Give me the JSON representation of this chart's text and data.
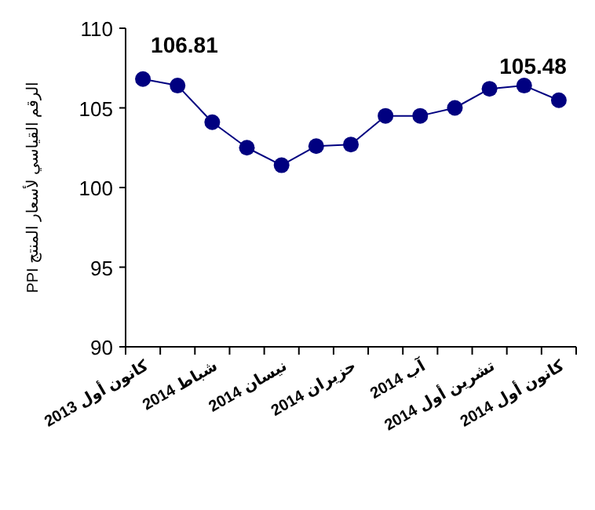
{
  "chart_data": {
    "type": "line",
    "ylabel": "الرقم القياسي لأسعار المنتج PPI",
    "categories": [
      "كانون أول 2013",
      null,
      "شباط 2014",
      null,
      "نيسان 2014",
      null,
      "حزيران 2014",
      null,
      "آب 2014",
      null,
      "تشرين أول 2014",
      null,
      "كانون أول 2014"
    ],
    "series": [
      {
        "color": "#000080",
        "values": [
          106.81,
          106.4,
          104.1,
          102.5,
          101.4,
          102.6,
          102.7,
          104.5,
          104.5,
          105.0,
          106.2,
          106.4,
          105.48
        ],
        "value_labels": [
          "106.81",
          null,
          null,
          null,
          null,
          null,
          null,
          null,
          null,
          null,
          null,
          null,
          "105.48"
        ]
      }
    ],
    "ylim": [
      90,
      110
    ],
    "yticks": [
      90,
      95,
      100,
      105,
      110
    ],
    "marker": "circle",
    "line_style": "solid",
    "grid": false
  }
}
